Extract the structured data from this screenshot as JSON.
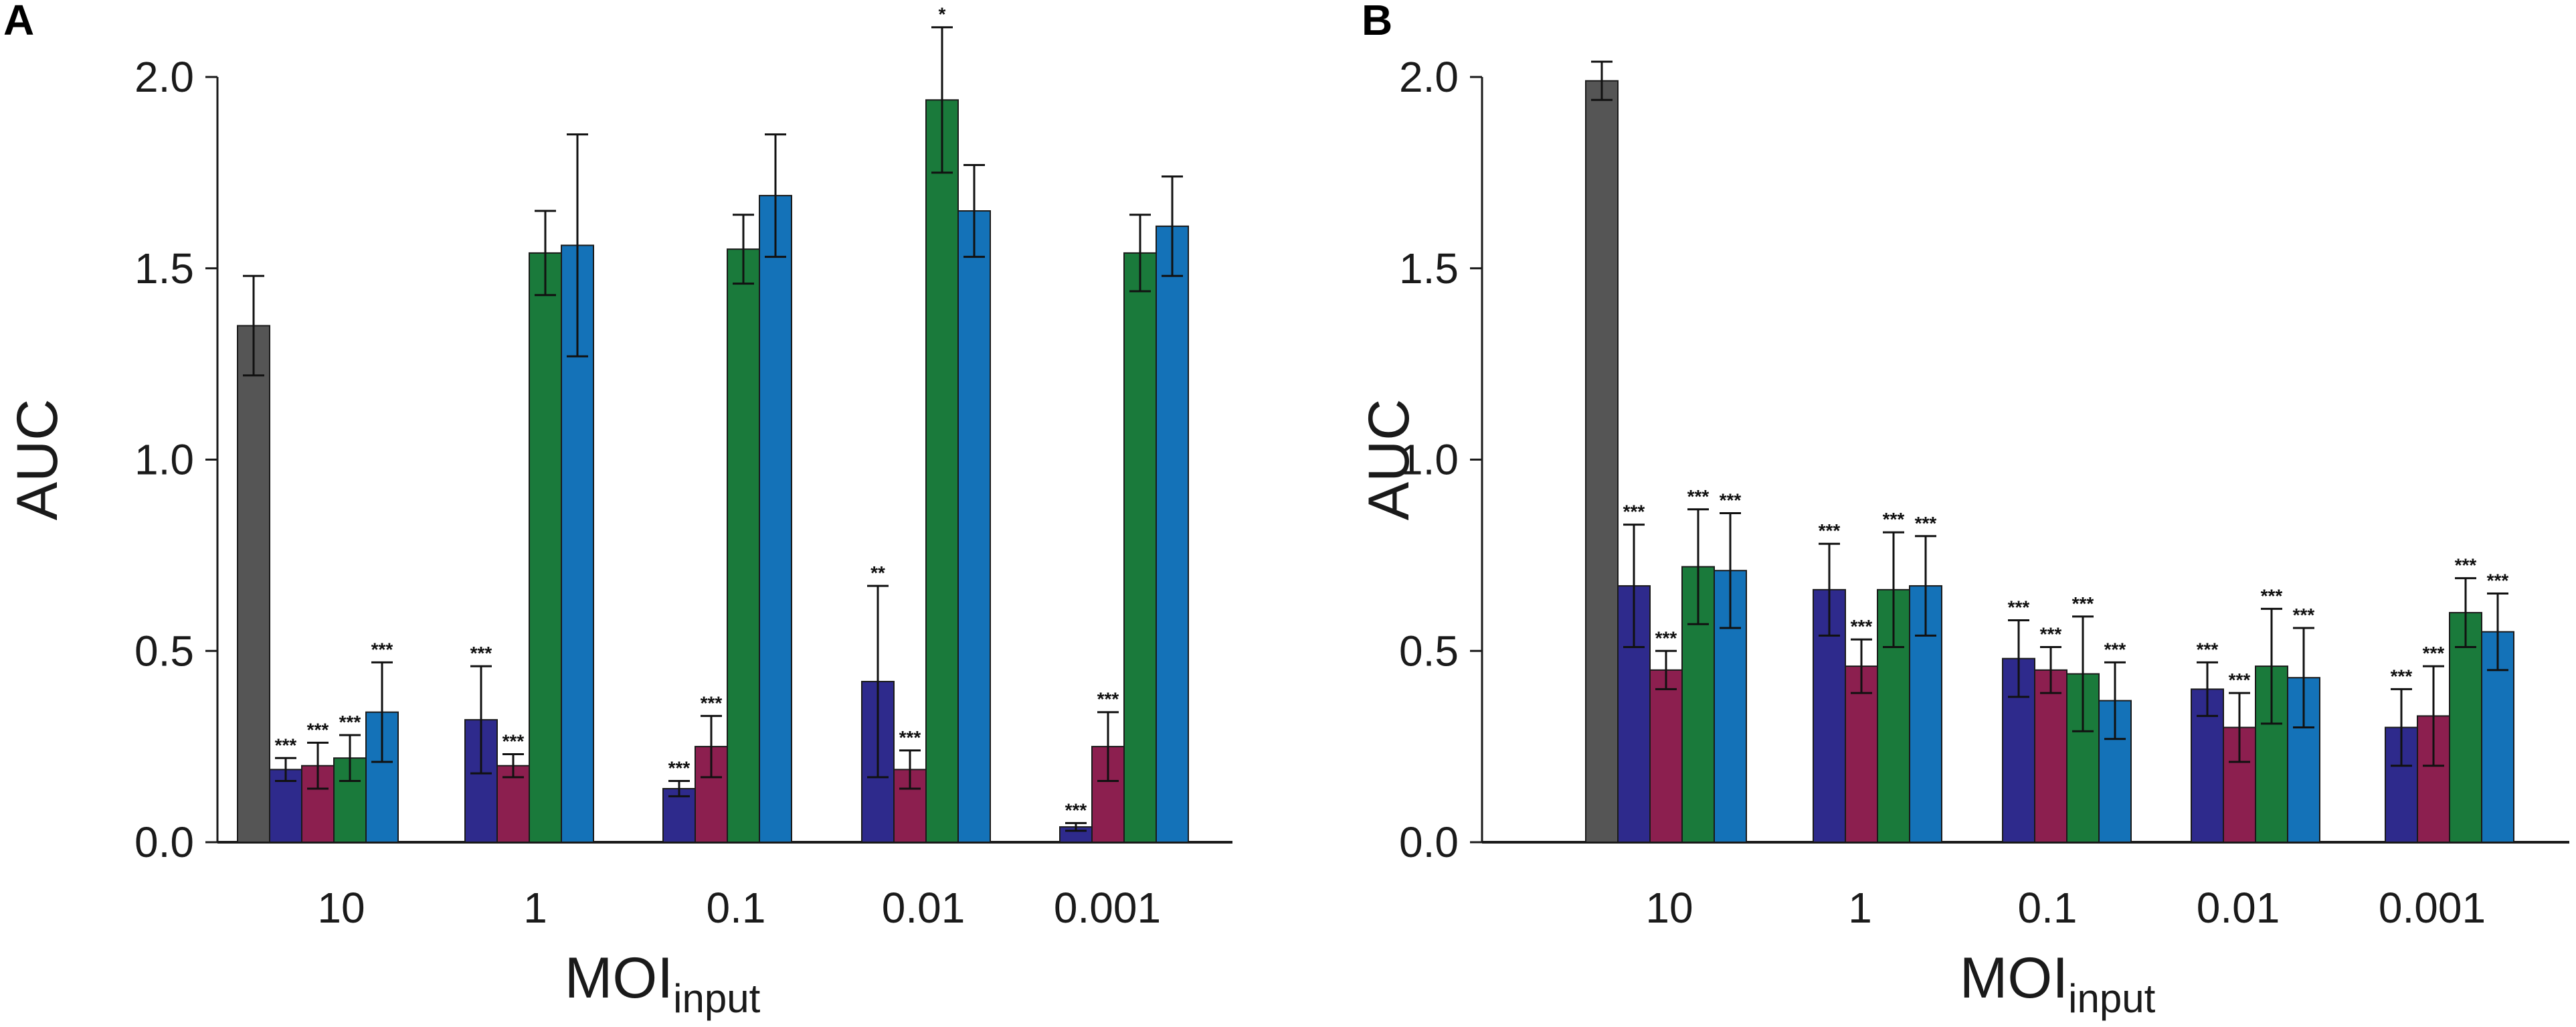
{
  "colors": {
    "control": "#555555",
    "s1": "#2e2a8c",
    "s2": "#8c1f4f",
    "s3": "#1a7a3b",
    "s4": "#1472b8"
  },
  "chart_data": [
    {
      "type": "bar",
      "panel": "A",
      "ylabel": "AUC",
      "xlabel": "MOI",
      "xlabel_sub": "input",
      "ylim": [
        0,
        2.0
      ],
      "yticks": [
        "0.0",
        "0.5",
        "1.0",
        "1.5",
        "2.0"
      ],
      "categories": [
        "10",
        "1",
        "0.1",
        "0.01",
        "0.001"
      ],
      "control": {
        "category": "10",
        "value": 1.35,
        "error": 0.13,
        "color_key": "control"
      },
      "series": [
        {
          "color_key": "s1",
          "values": [
            0.19,
            0.32,
            0.14,
            0.42,
            0.04
          ],
          "errors": [
            0.03,
            0.14,
            0.02,
            0.25,
            0.01
          ],
          "sig": [
            "***",
            "***",
            "***",
            "**",
            "***"
          ]
        },
        {
          "color_key": "s2",
          "values": [
            0.2,
            0.2,
            0.25,
            0.19,
            0.25
          ],
          "errors": [
            0.06,
            0.03,
            0.08,
            0.05,
            0.09
          ],
          "sig": [
            "***",
            "***",
            "***",
            "***",
            "***"
          ]
        },
        {
          "color_key": "s3",
          "values": [
            0.22,
            1.54,
            1.55,
            1.94,
            1.54
          ],
          "errors": [
            0.06,
            0.11,
            0.09,
            0.19,
            0.1
          ],
          "sig": [
            "***",
            "",
            "",
            "*",
            ""
          ]
        },
        {
          "color_key": "s4",
          "values": [
            0.34,
            1.56,
            1.69,
            1.65,
            1.61
          ],
          "errors": [
            0.13,
            0.29,
            0.16,
            0.12,
            0.13
          ],
          "sig": [
            "***",
            "",
            "",
            "",
            ""
          ]
        }
      ]
    },
    {
      "type": "bar",
      "panel": "B",
      "ylabel": "AUC",
      "xlabel": "MOI",
      "xlabel_sub": "input",
      "ylim": [
        0,
        2.0
      ],
      "yticks": [
        "0.0",
        "0.5",
        "1.0",
        "1.5",
        "2.0"
      ],
      "categories": [
        "10",
        "1",
        "0.1",
        "0.01",
        "0.001"
      ],
      "control": {
        "category": "10",
        "value": 1.99,
        "error": 0.05,
        "color_key": "control"
      },
      "series": [
        {
          "color_key": "s1",
          "values": [
            0.67,
            0.66,
            0.48,
            0.4,
            0.3
          ],
          "errors": [
            0.16,
            0.12,
            0.1,
            0.07,
            0.1
          ],
          "sig": [
            "***",
            "***",
            "***",
            "***",
            "***"
          ]
        },
        {
          "color_key": "s2",
          "values": [
            0.45,
            0.46,
            0.45,
            0.3,
            0.33
          ],
          "errors": [
            0.05,
            0.07,
            0.06,
            0.09,
            0.13
          ],
          "sig": [
            "***",
            "***",
            "***",
            "***",
            "***"
          ]
        },
        {
          "color_key": "s3",
          "values": [
            0.72,
            0.66,
            0.44,
            0.46,
            0.6
          ],
          "errors": [
            0.15,
            0.15,
            0.15,
            0.15,
            0.09
          ],
          "sig": [
            "***",
            "***",
            "***",
            "***",
            "***"
          ]
        },
        {
          "color_key": "s4",
          "values": [
            0.71,
            0.67,
            0.37,
            0.43,
            0.55
          ],
          "errors": [
            0.15,
            0.13,
            0.1,
            0.13,
            0.1
          ],
          "sig": [
            "***",
            "***",
            "***",
            "***",
            "***"
          ]
        }
      ]
    }
  ]
}
